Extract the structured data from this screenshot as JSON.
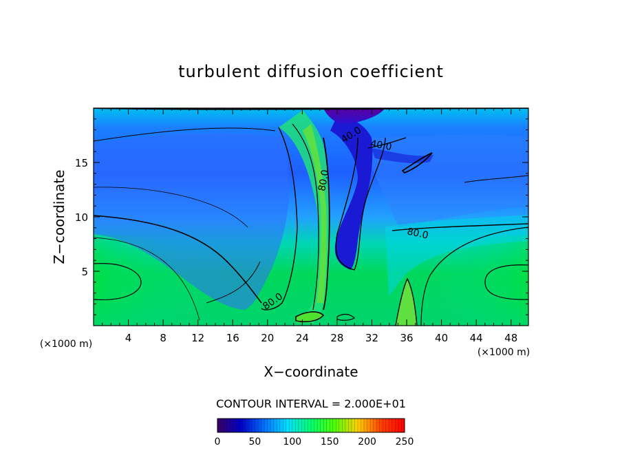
{
  "chart_data": {
    "type": "heatmap",
    "title": "turbulent diffusion coefficient",
    "xlabel": "X−coordinate",
    "ylabel": "Z−coordinate",
    "x_unit_left": "(×1000 m)",
    "x_unit_right": "(×1000 m)",
    "xlim": [
      0,
      50
    ],
    "ylim": [
      0,
      20
    ],
    "x_ticks": [
      4,
      8,
      12,
      16,
      20,
      24,
      28,
      32,
      36,
      40,
      44,
      48
    ],
    "y_ticks": [
      5,
      10,
      15
    ],
    "contour_interval_text": "CONTOUR INTERVAL = 2.000E+01",
    "contour_labels": [
      {
        "text": "40.0",
        "x": 29.8,
        "y": 17.3,
        "angle": -32
      },
      {
        "text": "40.0",
        "x": 33.0,
        "y": 16.3,
        "angle": 10
      },
      {
        "text": "80.0",
        "x": 26.8,
        "y": 13.3,
        "angle": -80
      },
      {
        "text": "80.0",
        "x": 37.2,
        "y": 8.2,
        "angle": 12
      },
      {
        "text": "80.0",
        "x": 20.8,
        "y": 2.0,
        "angle": -35
      }
    ],
    "colorbar": {
      "min": 0,
      "max": 250,
      "ticks": [
        0,
        50,
        100,
        150,
        200,
        250
      ],
      "tick_labels": [
        "0",
        "50",
        "100",
        "150",
        "200",
        "250"
      ],
      "stops": [
        "#3a0066",
        "#0000c8",
        "#0070ff",
        "#00e0ff",
        "#00ff70",
        "#50ff00",
        "#ffd000",
        "#ff4000",
        "#ff0000"
      ]
    },
    "colors": {
      "background_mid": "#2f8bff",
      "upper_band": "#0052ff",
      "lower_band": "#00c850",
      "jet_core": "#5ae043",
      "top_core": "#5b0aa4",
      "dark_tongue": "#1a1ad4"
    }
  }
}
